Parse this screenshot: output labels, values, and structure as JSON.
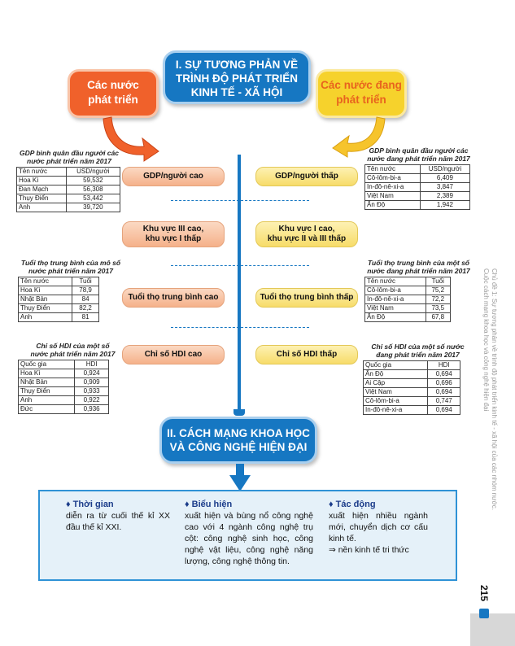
{
  "section1": {
    "title_lines": [
      "I. SỰ TƯƠNG PHẢN VỀ",
      "TRÌNH ĐỘ PHÁT TRIỂN",
      "KINH TẾ - XÃ HỘI"
    ],
    "left_category": [
      "Các nước",
      "phát triển"
    ],
    "right_category": [
      "Các nước đang",
      "phát triển"
    ]
  },
  "pills_left": [
    "GDP/người cao",
    "Khu vực III cao,",
    "khu vực I thấp",
    "Tuổi thọ trung bình cao",
    "Chỉ số HDI cao"
  ],
  "pills_right": [
    "GDP/người thấp",
    "Khu vực I cao,",
    "khu vực II và III thấp",
    "Tuổi thọ trung bình thấp",
    "Chỉ số HDI thấp"
  ],
  "tables": {
    "gdp_dev": {
      "caption": [
        "GDP bình quân đầu người các",
        "nước phát triển năm 2017"
      ],
      "header": [
        "Tên nước",
        "USD/người"
      ],
      "rows": [
        [
          "Hoa Kì",
          "59,532"
        ],
        [
          "Đan Mạch",
          "56,308"
        ],
        [
          "Thụy Điển",
          "53,442"
        ],
        [
          "Anh",
          "39,720"
        ]
      ]
    },
    "gdp_devg": {
      "caption": [
        "GDP bình quân đầu người các",
        "nước đang phát triển năm 2017"
      ],
      "header": [
        "Tên nước",
        "USD/người"
      ],
      "rows": [
        [
          "Cô-lôm-bi-a",
          "6,409"
        ],
        [
          "In-đô-nê-xi-a",
          "3,847"
        ],
        [
          "Việt Nam",
          "2,389"
        ],
        [
          "Ấn Độ",
          "1,942"
        ]
      ]
    },
    "life_dev": {
      "caption": [
        "Tuổi thọ trung bình của mô số",
        "nước phát triển năm 2017"
      ],
      "header": [
        "Tên nước",
        "Tuổi"
      ],
      "rows": [
        [
          "Hoa Kì",
          "78,9"
        ],
        [
          "Nhật Bản",
          "84"
        ],
        [
          "Thụy Điển",
          "82,2"
        ],
        [
          "Anh",
          "81"
        ]
      ]
    },
    "life_devg": {
      "caption": [
        "Tuổi thọ trung bình của một số",
        "nước đang phát triển năm 2017"
      ],
      "header": [
        "Tên nước",
        "Tuổi"
      ],
      "rows": [
        [
          "Cô-lôm-bi-a",
          "75,2"
        ],
        [
          "In-đô-nê-xi-a",
          "72,2"
        ],
        [
          "Việt Nam",
          "73,5"
        ],
        [
          "Ấn Độ",
          "67,8"
        ]
      ]
    },
    "hdi_dev": {
      "caption": [
        "Chỉ số HDI của một số",
        "nước phát triển năm 2017"
      ],
      "header": [
        "Quốc gia",
        "HDI"
      ],
      "rows": [
        [
          "Hoa Kì",
          "0,924"
        ],
        [
          "Nhật Bản",
          "0,909"
        ],
        [
          "Thụy Điển",
          "0,933"
        ],
        [
          "Anh",
          "0,922"
        ],
        [
          "Đức",
          "0,936"
        ]
      ]
    },
    "hdi_devg": {
      "caption": [
        "Chỉ số HDI của một số nước",
        "đang phát triển năm 2017"
      ],
      "header": [
        "Quốc gia",
        "HDI"
      ],
      "rows": [
        [
          "Ấn Độ",
          "0,694"
        ],
        [
          "Ai Cập",
          "0,696"
        ],
        [
          "Việt Nam",
          "0,694"
        ],
        [
          "Cô-lôm-bi-a",
          "0,747"
        ],
        [
          "In-đô-nê-xi-a",
          "0,694"
        ]
      ]
    }
  },
  "section2": {
    "title_lines": [
      "II. CÁCH MẠNG KHOA HỌC",
      "VÀ CÔNG NGHỆ HIỆN ĐẠI"
    ],
    "col1": {
      "heading": "♦ Thời gian",
      "text": "diễn ra từ cuối thế kỉ XX đầu thế kỉ XXI."
    },
    "col2": {
      "heading": "♦ Biểu hiện",
      "text": "xuất hiện và bùng nổ công nghệ cao với 4 ngành công nghệ trụ cột: công nghệ sinh học, công nghệ vật liệu, công nghệ năng lượng, công nghệ thông tin."
    },
    "col3": {
      "heading": "♦ Tác động",
      "text": "xuất hiện nhiều ngành mới, chuyển dịch cơ cấu kinh tế.",
      "arrow_text": "⇒ nền kinh tế tri thức"
    }
  },
  "sidebar": {
    "line1": "Chủ đề 1: Sự tương phản về trình độ phát triển kinh tế - xã hội của các nhóm nước.",
    "line2": "Cuộc cách mạng khoa học và công nghệ hiện đại"
  },
  "page_number": "215",
  "colors": {
    "blue": "#1677c2",
    "orange": "#f0612b",
    "yellow": "#f6d22c"
  }
}
